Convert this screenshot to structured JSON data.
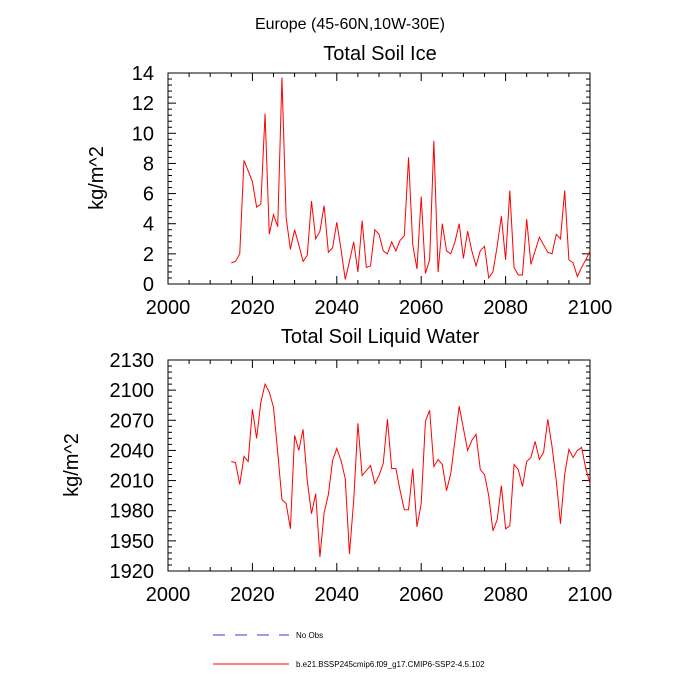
{
  "figure": {
    "suptitle": "Europe (45-60N,10W-30E)",
    "legend": [
      {
        "label": "No Obs",
        "color": "#3a3ad6",
        "style": "dashed"
      },
      {
        "label": "b.e21.BSSP245cmip6.f09_g17.CMIP6-SSP2-4.5.102",
        "color": "#ff0000",
        "style": "solid"
      }
    ]
  },
  "chart_data": [
    {
      "type": "line",
      "title": "Total Soil Ice",
      "xlabel": "",
      "ylabel": "kg/m^2",
      "xlim": [
        2000,
        2100
      ],
      "ylim": [
        0,
        14
      ],
      "grid": false,
      "xticks": [
        2000,
        2020,
        2040,
        2060,
        2080,
        2100
      ],
      "yticks": [
        0,
        2,
        4,
        6,
        8,
        10,
        12,
        14
      ],
      "series": [
        {
          "color": "#ff0000",
          "x": [
            2015,
            2016,
            2017,
            2018,
            2019,
            2020,
            2021,
            2022,
            2023,
            2024,
            2025,
            2026,
            2027,
            2028,
            2029,
            2030,
            2031,
            2032,
            2033,
            2034,
            2035,
            2036,
            2037,
            2038,
            2039,
            2040,
            2041,
            2042,
            2043,
            2044,
            2045,
            2046,
            2047,
            2048,
            2049,
            2050,
            2051,
            2052,
            2053,
            2054,
            2055,
            2056,
            2057,
            2058,
            2059,
            2060,
            2061,
            2062,
            2063,
            2064,
            2065,
            2066,
            2067,
            2068,
            2069,
            2070,
            2071,
            2072,
            2073,
            2074,
            2075,
            2076,
            2077,
            2078,
            2079,
            2080,
            2081,
            2082,
            2083,
            2084,
            2085,
            2086,
            2087,
            2088,
            2089,
            2090,
            2091,
            2092,
            2093,
            2094,
            2095,
            2096,
            2097,
            2098,
            2099,
            2100
          ],
          "values": [
            1.4,
            1.5,
            2.0,
            8.2,
            7.5,
            6.8,
            5.1,
            5.3,
            11.3,
            3.3,
            4.6,
            3.8,
            13.7,
            4.4,
            2.3,
            3.6,
            2.6,
            1.5,
            1.9,
            5.5,
            3.0,
            3.5,
            5.2,
            2.1,
            2.4,
            4.1,
            2.3,
            0.3,
            1.5,
            2.8,
            0.8,
            4.2,
            1.1,
            1.2,
            3.6,
            3.3,
            2.2,
            2.0,
            2.8,
            2.2,
            2.9,
            3.2,
            8.4,
            2.6,
            1.0,
            5.8,
            0.7,
            1.6,
            9.5,
            0.8,
            4.0,
            2.2,
            2.0,
            2.8,
            4.0,
            1.7,
            3.5,
            2.2,
            1.2,
            2.2,
            2.5,
            0.4,
            0.8,
            2.5,
            4.5,
            1.6,
            6.2,
            1.1,
            0.6,
            0.6,
            4.3,
            1.3,
            2.2,
            3.1,
            2.6,
            2.1,
            2.0,
            3.3,
            3.0,
            6.2,
            1.6,
            1.4,
            0.5,
            1.1,
            1.6,
            2.2
          ]
        }
      ]
    },
    {
      "type": "line",
      "title": "Total Soil Liquid Water",
      "xlabel": "",
      "ylabel": "kg/m^2",
      "xlim": [
        2000,
        2100
      ],
      "ylim": [
        1920,
        2130
      ],
      "grid": false,
      "xticks": [
        2000,
        2020,
        2040,
        2060,
        2080,
        2100
      ],
      "yticks": [
        1920,
        1950,
        1980,
        2010,
        2040,
        2070,
        2100,
        2130
      ],
      "series": [
        {
          "color": "#ff0000",
          "x": [
            2015,
            2016,
            2017,
            2018,
            2019,
            2020,
            2021,
            2022,
            2023,
            2024,
            2025,
            2026,
            2027,
            2028,
            2029,
            2030,
            2031,
            2032,
            2033,
            2034,
            2035,
            2036,
            2037,
            2038,
            2039,
            2040,
            2041,
            2042,
            2043,
            2044,
            2045,
            2046,
            2047,
            2048,
            2049,
            2050,
            2051,
            2052,
            2053,
            2054,
            2055,
            2056,
            2057,
            2058,
            2059,
            2060,
            2061,
            2062,
            2063,
            2064,
            2065,
            2066,
            2067,
            2068,
            2069,
            2070,
            2071,
            2072,
            2073,
            2074,
            2075,
            2076,
            2077,
            2078,
            2079,
            2080,
            2081,
            2082,
            2083,
            2084,
            2085,
            2086,
            2087,
            2088,
            2089,
            2090,
            2091,
            2092,
            2093,
            2094,
            2095,
            2096,
            2097,
            2098,
            2099,
            2100
          ],
          "values": [
            2029,
            2028,
            2006,
            2034,
            2029,
            2081,
            2052,
            2088,
            2106,
            2098,
            2083,
            2038,
            1991,
            1987,
            1962,
            2055,
            2040,
            2061,
            2010,
            1977,
            1997,
            1934,
            1978,
            1996,
            2030,
            2042,
            2030,
            2012,
            1937,
            1990,
            2067,
            2015,
            2020,
            2025,
            2007,
            2015,
            2027,
            2071,
            2022,
            2022,
            2000,
            1981,
            1981,
            2022,
            1964,
            1987,
            2069,
            2080,
            2024,
            2031,
            2026,
            2000,
            2017,
            2050,
            2084,
            2062,
            2040,
            2050,
            2056,
            2021,
            2016,
            1995,
            1960,
            1971,
            2005,
            1962,
            1965,
            2026,
            2021,
            2004,
            2029,
            2033,
            2049,
            2031,
            2038,
            2071,
            2044,
            2010,
            1967,
            2016,
            2041,
            2033,
            2040,
            2043,
            2022,
            2007
          ]
        }
      ]
    }
  ]
}
